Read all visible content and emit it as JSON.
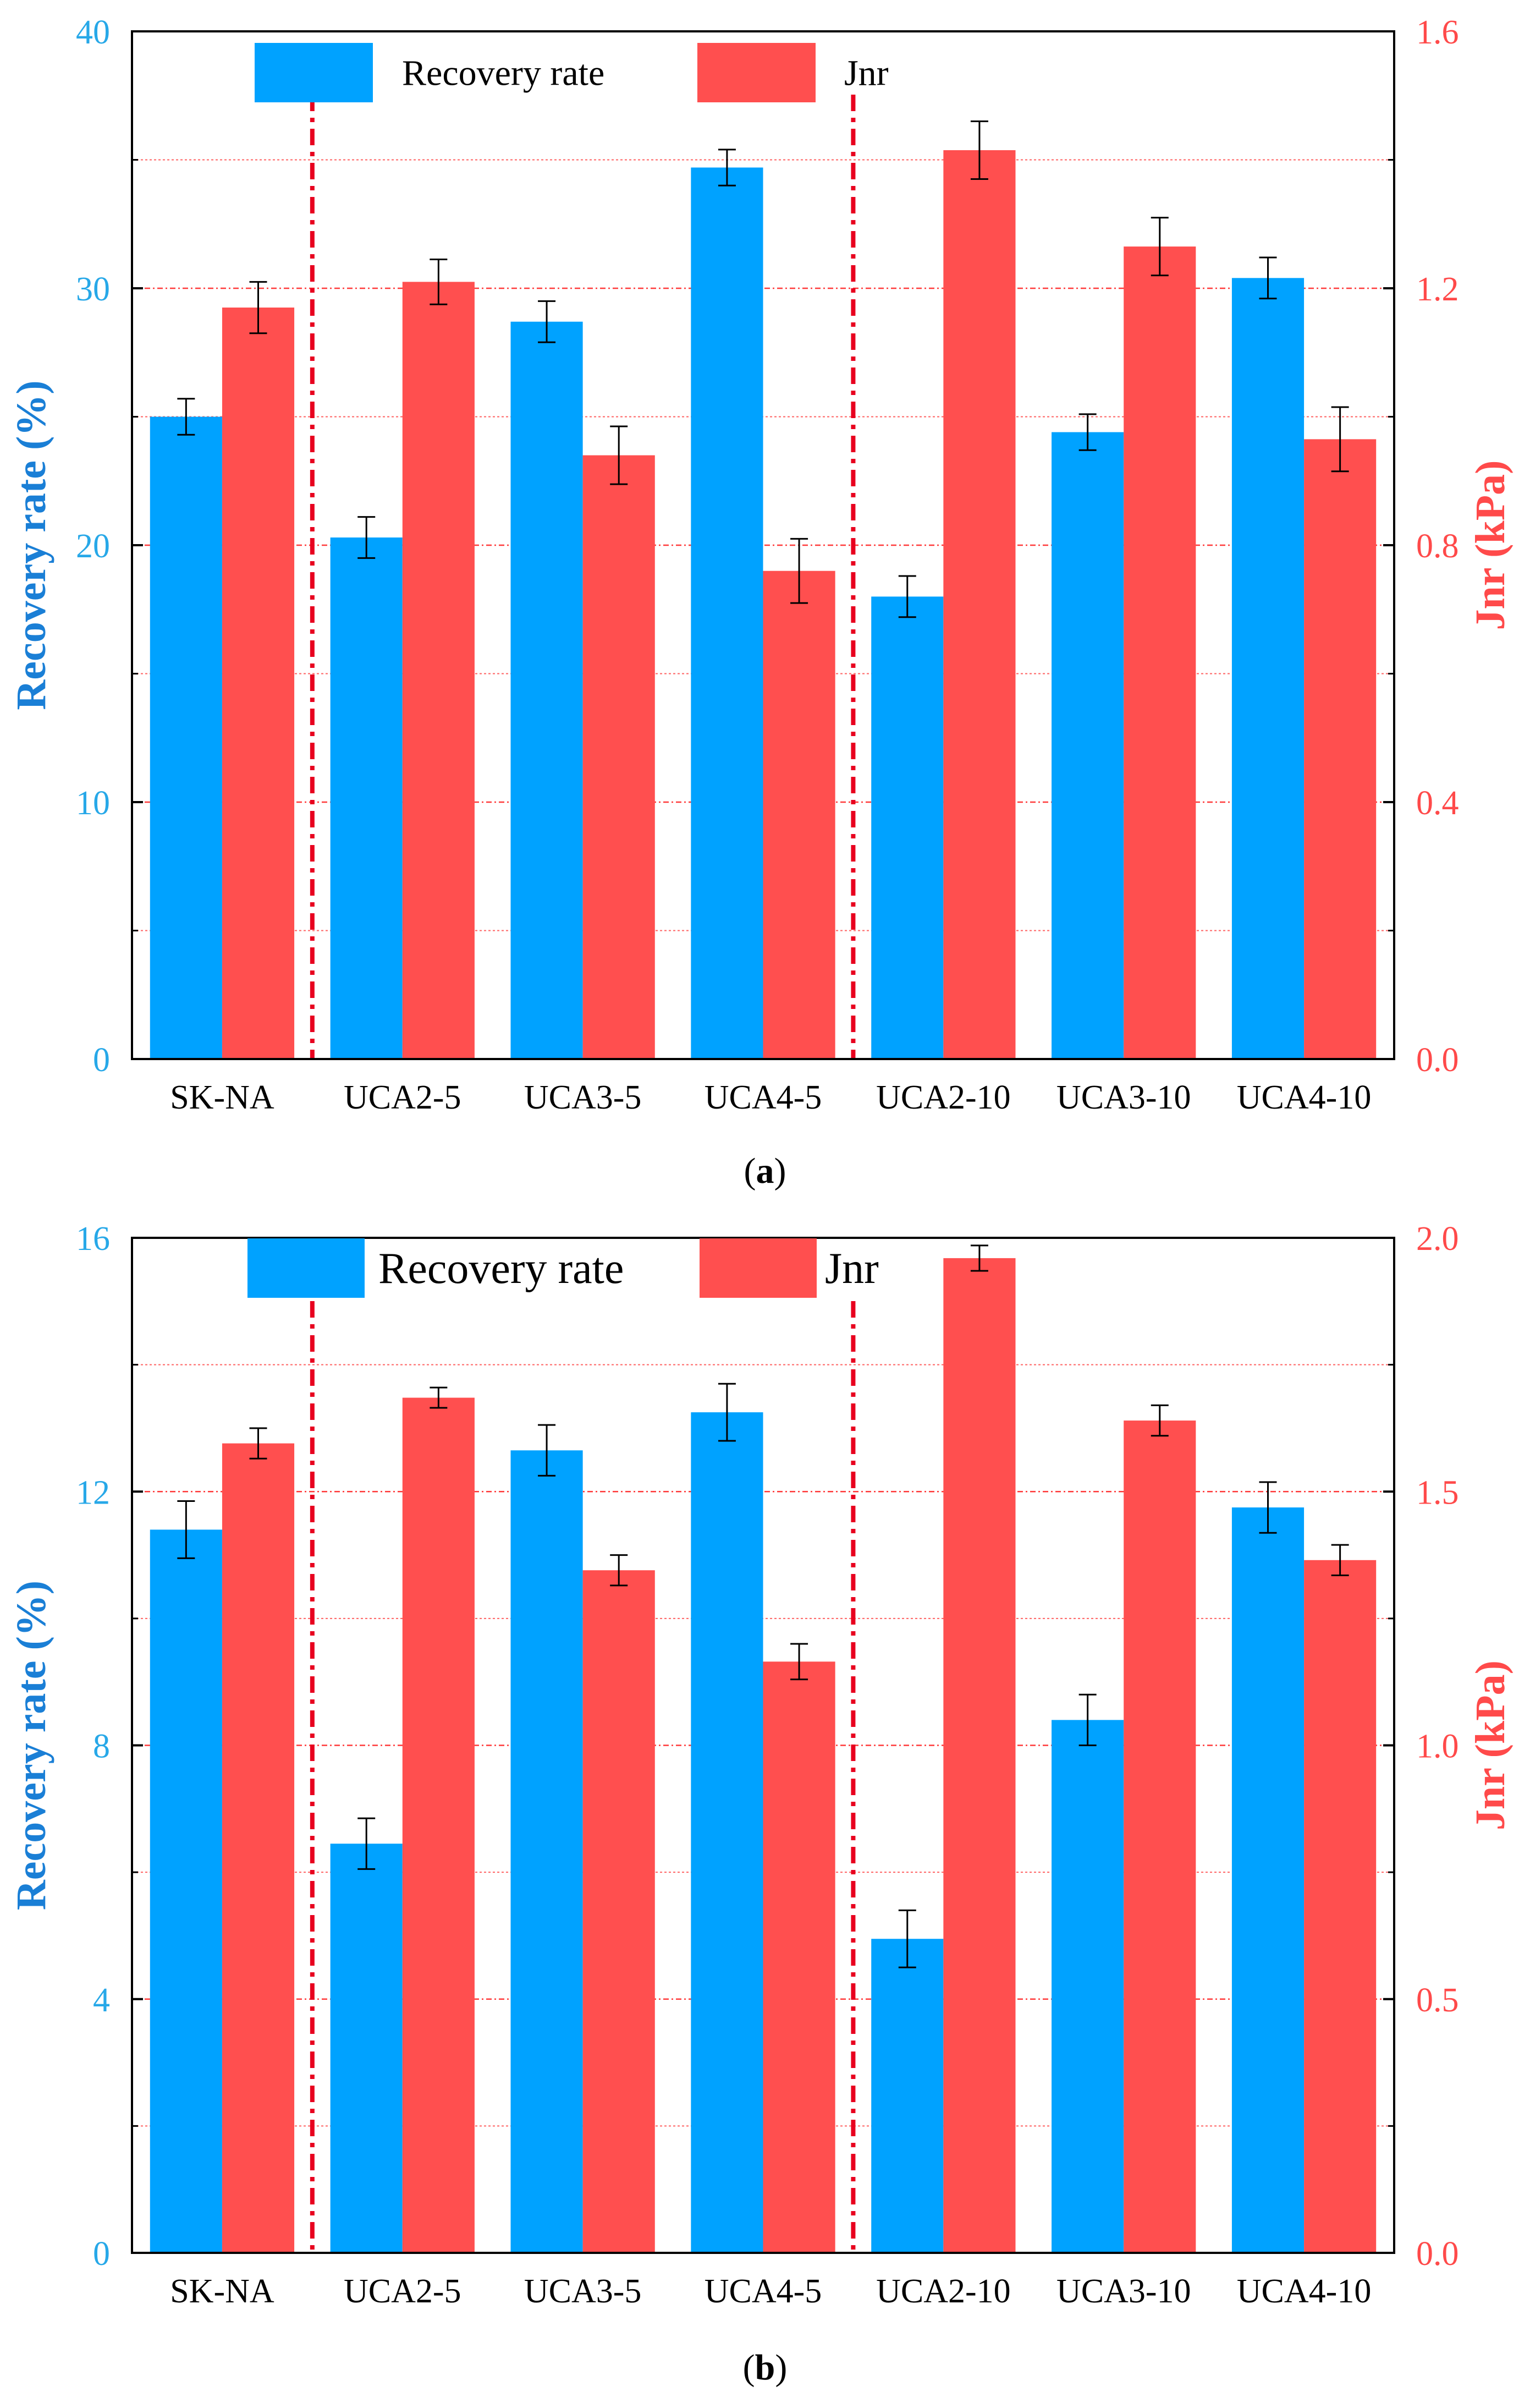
{
  "colors": {
    "recovery": "#00a2ff",
    "jnr": "#ff4f4f",
    "left_axis": "#1a7fd6",
    "right_axis": "#ff4a4a",
    "left_ticks": "#27a8e8",
    "divider": "#e8001f",
    "grid": "#ff3030",
    "axis": "#000000"
  },
  "chart_data": [
    {
      "type": "bar",
      "caption": "(a)",
      "caption_letter": "a",
      "categories": [
        "SK-NA",
        "UCA2-5",
        "UCA3-5",
        "UCA4-5",
        "UCA2-10",
        "UCA3-10",
        "UCA4-10"
      ],
      "ylabel": "Recovery rate (%)",
      "y2label": "Jnr (kPa)",
      "ylim": [
        0,
        40
      ],
      "y2lim": [
        0,
        1.6
      ],
      "yticks": [
        "0",
        "10",
        "20",
        "30",
        "40"
      ],
      "y2ticks": [
        "0.0",
        "0.4",
        "0.8",
        "1.2",
        "1.6"
      ],
      "legend_position": "top",
      "dividers_after_categories": [
        0,
        3
      ],
      "series": [
        {
          "name": "Recovery rate",
          "axis": "left",
          "values": [
            25.0,
            20.3,
            28.7,
            34.7,
            18.0,
            24.4,
            30.4
          ],
          "errors": [
            0.7,
            0.8,
            0.8,
            0.7,
            0.8,
            0.7,
            0.8
          ]
        },
        {
          "name": "Jnr",
          "axis": "right",
          "values": [
            1.17,
            1.21,
            0.94,
            0.76,
            1.415,
            1.265,
            0.965
          ],
          "errors": [
            0.04,
            0.035,
            0.045,
            0.05,
            0.045,
            0.045,
            0.05
          ]
        }
      ]
    },
    {
      "type": "bar",
      "caption": "(b)",
      "caption_letter": "b",
      "categories": [
        "SK-NA",
        "UCA2-5",
        "UCA3-5",
        "UCA4-5",
        "UCA2-10",
        "UCA3-10",
        "UCA4-10"
      ],
      "ylabel": "Recovery rate (%)",
      "y2label": "Jnr (kPa)",
      "ylim": [
        0,
        16
      ],
      "y2lim": [
        0,
        2.0
      ],
      "yticks": [
        "0",
        "4",
        "8",
        "12",
        "16"
      ],
      "y2ticks": [
        "0.0",
        "0.5",
        "1.0",
        "1.5",
        "2.0"
      ],
      "legend_position": "top",
      "dividers_after_categories": [
        0,
        3
      ],
      "series": [
        {
          "name": "Recovery rate",
          "axis": "left",
          "values": [
            11.4,
            6.45,
            12.65,
            13.25,
            4.95,
            8.4,
            11.75
          ],
          "errors": [
            0.45,
            0.4,
            0.4,
            0.45,
            0.45,
            0.4,
            0.4
          ]
        },
        {
          "name": "Jnr",
          "axis": "right",
          "values": [
            1.595,
            1.685,
            1.345,
            1.165,
            1.96,
            1.64,
            1.365
          ],
          "errors": [
            0.03,
            0.02,
            0.03,
            0.035,
            0.025,
            0.03,
            0.03
          ]
        }
      ]
    }
  ]
}
